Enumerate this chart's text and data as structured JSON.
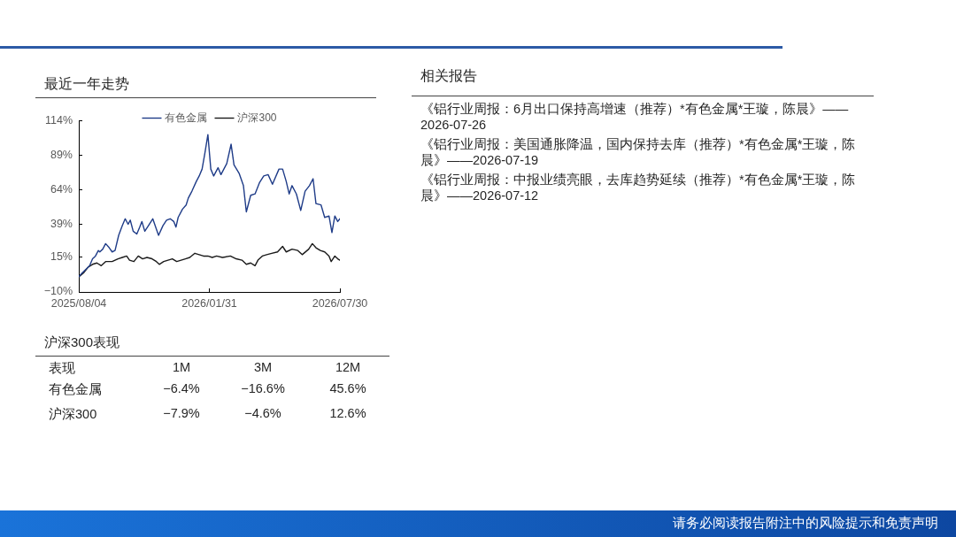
{
  "chart_data": {
    "type": "line",
    "title": "最近一年走势",
    "xlim": [
      "2025-08-04",
      "2026-07-30"
    ],
    "xticks": [
      {
        "value": "2025-08-04",
        "label": "2025/08/04"
      },
      {
        "value": "2026-01-31",
        "label": "2026/01/31"
      },
      {
        "value": "2026-07-30",
        "label": "2026/07/30"
      }
    ],
    "ylim": [
      -10,
      114
    ],
    "yticks": [
      {
        "value": -10,
        "label": "−10%"
      },
      {
        "value": 15,
        "label": "15%"
      },
      {
        "value": 39,
        "label": "39%"
      },
      {
        "value": 64,
        "label": "64%"
      },
      {
        "value": 89,
        "label": "89%"
      },
      {
        "value": 114,
        "label": "114%"
      }
    ],
    "legend": "top",
    "marker": "none",
    "series": [
      {
        "name": "有色金属",
        "color": "#1f3c88",
        "x": [
          "2025-08-04",
          "2025-08-09",
          "2025-08-15",
          "2025-08-19",
          "2025-08-23",
          "2025-08-27",
          "2025-08-31",
          "2025-09-02",
          "2025-09-06",
          "2025-09-10",
          "2025-09-15",
          "2025-09-19",
          "2025-09-23",
          "2025-09-28",
          "2025-10-03",
          "2025-10-07",
          "2025-10-11",
          "2025-10-14",
          "2025-10-18",
          "2025-10-23",
          "2025-10-27",
          "2025-10-30",
          "2025-11-03",
          "2025-11-08",
          "2025-11-14",
          "2025-11-18",
          "2025-11-22",
          "2025-11-28",
          "2025-12-03",
          "2025-12-08",
          "2025-12-13",
          "2025-12-16",
          "2025-12-19",
          "2025-12-25",
          "2025-12-30",
          "2026-01-02",
          "2026-01-07",
          "2026-01-13",
          "2026-01-17",
          "2026-01-21",
          "2026-01-25",
          "2026-01-29",
          "2026-02-02",
          "2026-02-06",
          "2026-02-12",
          "2026-02-16",
          "2026-02-24",
          "2026-03-02",
          "2026-03-06",
          "2026-03-13",
          "2026-03-19",
          "2026-03-23",
          "2026-03-29",
          "2026-04-04",
          "2026-04-10",
          "2026-04-16",
          "2026-04-22",
          "2026-04-28",
          "2026-05-07",
          "2026-05-12",
          "2026-05-17",
          "2026-05-21",
          "2026-05-25",
          "2026-05-31",
          "2026-06-06",
          "2026-06-12",
          "2026-06-18",
          "2026-06-23",
          "2026-06-27",
          "2026-07-04",
          "2026-07-09",
          "2026-07-15",
          "2026-07-19",
          "2026-07-23",
          "2026-07-27",
          "2026-07-30"
        ],
        "values": [
          1,
          4,
          7,
          9,
          14,
          16,
          20,
          19,
          21,
          25,
          22,
          19,
          20,
          31,
          38,
          43,
          39,
          42,
          34,
          32,
          37,
          41,
          34,
          38,
          43,
          37,
          31,
          38,
          42,
          43,
          41,
          37,
          44,
          50,
          53,
          58,
          63,
          70,
          74,
          79,
          91,
          104,
          79,
          74,
          80,
          75,
          83,
          97,
          82,
          76,
          67,
          48,
          60,
          61,
          69,
          74,
          75,
          68,
          79,
          79,
          70,
          61,
          67,
          61,
          49,
          63,
          67,
          72,
          54,
          53,
          44,
          45,
          33,
          45,
          41,
          43
        ]
      },
      {
        "name": "沪深300",
        "color": "#1a1a1a",
        "x": [
          "2025-08-04",
          "2025-08-11",
          "2025-08-17",
          "2025-08-23",
          "2025-08-29",
          "2025-09-04",
          "2025-09-10",
          "2025-09-19",
          "2025-09-27",
          "2025-10-03",
          "2025-10-09",
          "2025-10-13",
          "2025-10-19",
          "2025-10-25",
          "2025-10-31",
          "2025-11-06",
          "2025-11-13",
          "2025-11-19",
          "2025-11-23",
          "2025-11-29",
          "2025-12-05",
          "2025-12-11",
          "2025-12-17",
          "2025-12-23",
          "2025-12-29",
          "2026-01-04",
          "2026-01-11",
          "2026-01-17",
          "2026-01-23",
          "2026-01-29",
          "2026-02-04",
          "2026-02-10",
          "2026-02-18",
          "2026-03-01",
          "2026-03-09",
          "2026-03-17",
          "2026-03-23",
          "2026-03-29",
          "2026-04-04",
          "2026-04-08",
          "2026-04-14",
          "2026-04-20",
          "2026-04-27",
          "2026-05-05",
          "2026-05-12",
          "2026-05-17",
          "2026-05-25",
          "2026-06-02",
          "2026-06-08",
          "2026-06-17",
          "2026-06-22",
          "2026-06-27",
          "2026-07-03",
          "2026-07-09",
          "2026-07-15",
          "2026-07-18",
          "2026-07-23",
          "2026-07-27",
          "2026-07-30"
        ],
        "values": [
          1,
          4,
          8,
          10,
          11,
          9,
          12,
          12,
          14,
          15,
          16,
          13,
          12,
          16,
          14,
          15,
          14,
          12,
          10,
          12,
          13,
          14,
          12,
          13,
          14,
          15,
          18,
          17,
          16,
          16,
          15,
          16,
          15,
          16,
          14,
          13,
          10,
          11,
          9,
          13,
          16,
          17,
          18,
          19,
          23,
          19,
          21,
          20,
          17,
          21,
          25,
          22,
          20,
          19,
          16,
          12,
          16,
          14,
          13
        ]
      }
    ],
    "annotations": [
      "沪深300表现",
      "表现",
      "1M",
      "3M",
      "12M",
      "有色金属",
      "−6.4%",
      "−16.6%",
      "45.6%",
      "沪深300",
      "−7.9%",
      "−4.6%",
      "12.6%",
      "相关报告",
      "《铝行业周报：6月出口保持高增速（推荐）*有色金属*王璇，陈晨》——2026-07-26",
      "《铝行业周报：美国通胀降温，国内保持去库（推荐）*有色金属*王璇，陈晨》——2026-07-19",
      "《铝行业周报：中报业绩亮眼，去库趋势延续（推荐）*有色金属*王璇，陈晨》——2026-07-12",
      "请务必阅读报告附注中的风险提示和免责声明"
    ]
  }
}
